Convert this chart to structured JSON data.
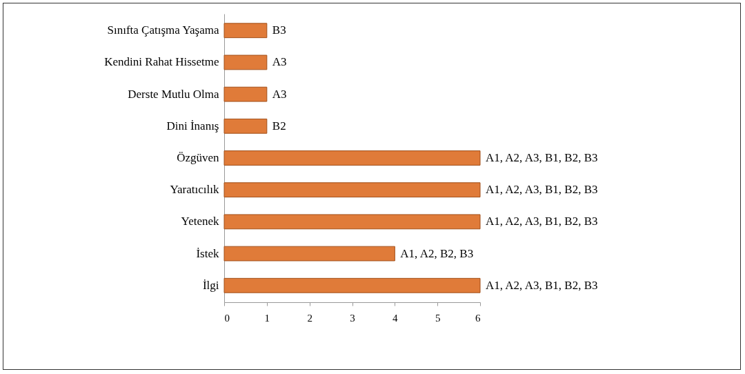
{
  "chart_data": {
    "type": "bar",
    "orientation": "horizontal",
    "categories": [
      "Sınıfta Çatışma Yaşama",
      "Kendini Rahat Hissetme",
      "Derste Mutlu Olma",
      "Dini İnanış",
      "Özgüven",
      "Yaratıcılık",
      "Yetenek",
      "İstek",
      "İlgi"
    ],
    "values": [
      1,
      1,
      1,
      1,
      6,
      6,
      6,
      4,
      6
    ],
    "value_labels": [
      "B3",
      "A3",
      "A3",
      "B2",
      "A1, A2, A3, B1, B2, B3",
      "A1, A2, A3, B1, B2, B3",
      "A1, A2, A3, B1, B2, B3",
      "A1, A2, B2, B3",
      "A1, A2, A3, B1, B2, B3"
    ],
    "color": "#e07b39",
    "xlim": [
      0,
      6
    ],
    "xticks": [
      0,
      1,
      2,
      3,
      4,
      5,
      6
    ],
    "grid": false
  }
}
